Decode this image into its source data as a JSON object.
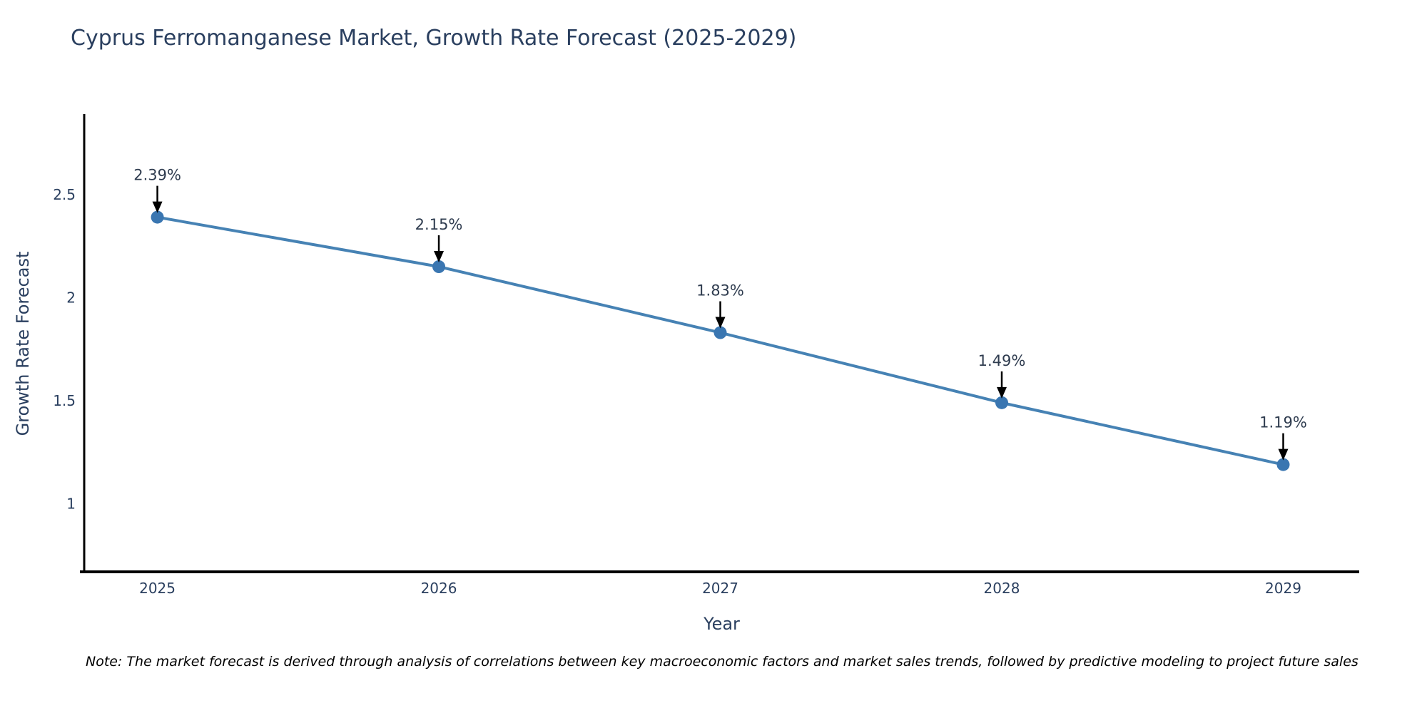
{
  "header": {
    "title": "Cyprus Ferromanganese Market, Growth Rate Forecast (2025-2029)"
  },
  "note": {
    "text": "Note: The market forecast is derived through analysis of correlations between key macroeconomic factors and market sales trends, followed by predictive modeling to project future sales"
  },
  "chart_data": {
    "type": "line",
    "title": "Cyprus Ferromanganese Market, Growth Rate Forecast (2025-2029)",
    "xlabel": "Year",
    "ylabel": "Growth Rate Forecast",
    "x": [
      2025,
      2026,
      2027,
      2028,
      2029
    ],
    "categories": [
      "2025",
      "2026",
      "2027",
      "2028",
      "2029"
    ],
    "series": [
      {
        "name": "Growth Rate Forecast",
        "values": [
          2.39,
          2.15,
          1.83,
          1.49,
          1.19
        ]
      }
    ],
    "point_labels": [
      "2.39%",
      "2.15%",
      "1.83%",
      "1.49%",
      "1.19%"
    ],
    "yticks": [
      1,
      1.5,
      2,
      2.5
    ],
    "ytick_labels": [
      "1",
      "1.5",
      "2",
      "2.5"
    ],
    "xlim": [
      2024.74,
      2029.27
    ],
    "ylim": [
      0.67,
      2.89
    ],
    "grid": false,
    "legend": "none",
    "colors": {
      "line": "#4682b4",
      "marker": "#3a76b1",
      "axis": "#000000",
      "tick_text": "#2a3f5f",
      "annotation_text": "#2f3c4f",
      "annotation_arrow": "#000000"
    }
  }
}
